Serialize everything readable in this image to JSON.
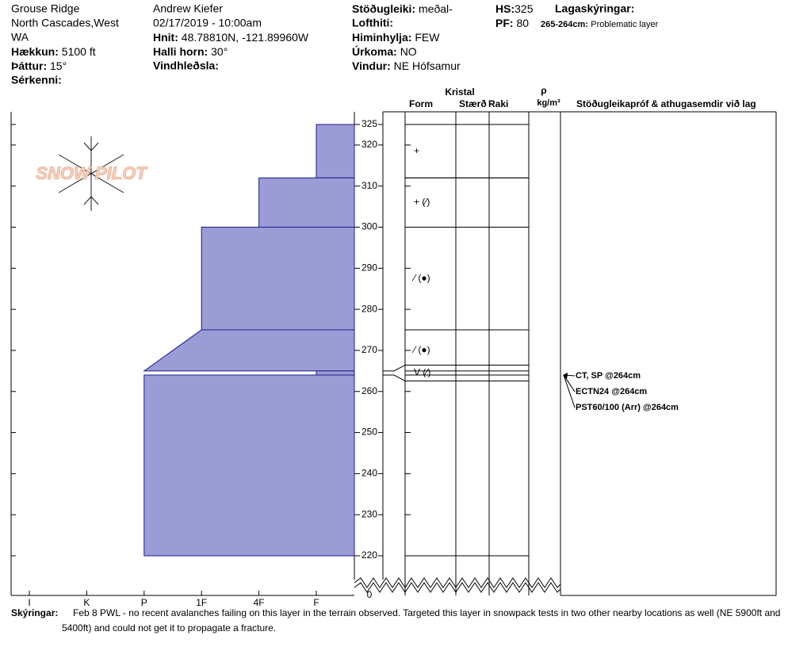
{
  "header": {
    "site": "Grouse Ridge",
    "region": [
      "North Cascades,West",
      "WA"
    ],
    "elevation": {
      "label": "Hækkun:",
      "value": "5100 ft"
    },
    "aspect": {
      "label": "Þáttur:",
      "value": "15°"
    },
    "features": {
      "label": "Sérkenni:"
    },
    "observer": "Andrew Kiefer",
    "datetime": "02/17/2019 - 10:00am",
    "coords": {
      "label": "Hnit:",
      "value": "48.78810N, -121.89960W"
    },
    "slope": {
      "label": "Halli horn:",
      "value": "30°"
    },
    "wind_loading": {
      "label": "Vindhleðsla:"
    },
    "stability": {
      "label": "Stöðugleiki:",
      "value": "meðal-"
    },
    "air_temp": {
      "label": "Lofthiti:"
    },
    "sky": {
      "label": "Himinhylja:",
      "value": "FEW"
    },
    "precip": {
      "label": "Úrkoma:",
      "value": "NO"
    },
    "wind": {
      "label": "Vindur:",
      "value": "NE Hófsamur"
    },
    "hs": {
      "label": "HS:",
      "value": "325"
    },
    "pf": {
      "label": "PF:",
      "value": "80"
    },
    "layer_notes": {
      "label": "Lagaskýringar:",
      "range": "265-264cm:",
      "text": "Problematic layer"
    }
  },
  "chart_data": {
    "type": "profile",
    "logo": "SNOW PILOT",
    "hardness_scale": [
      "I",
      "K",
      "P",
      "1F",
      "4F",
      "F"
    ],
    "ylim": [
      220,
      325
    ],
    "yticks": [
      325,
      320,
      310,
      300,
      290,
      280,
      270,
      260,
      250,
      240,
      230,
      220,
      0
    ],
    "axis_break": true,
    "color": "#9b9bd6",
    "columns": {
      "crystal": "Kristal",
      "form": "Form",
      "size": "Stærð",
      "moisture": "Raki",
      "density": "ρ",
      "density_unit": "kg/m³",
      "tests": "Stöðugleikapróf & athugasemdir við lag"
    },
    "layers": [
      {
        "top": 325,
        "bottom": 312,
        "hardness": [
          "F",
          "F"
        ],
        "grain": "+"
      },
      {
        "top": 312,
        "bottom": 300,
        "hardness": [
          "4F",
          "4F"
        ],
        "grain": "+ (⁄)"
      },
      {
        "top": 300,
        "bottom": 275,
        "hardness": [
          "1F",
          "1F"
        ],
        "grain": "⁄ (●)"
      },
      {
        "top": 275,
        "bottom": 265,
        "hardness": [
          "1F",
          "P"
        ],
        "grain": "⁄ (●)"
      },
      {
        "top": 265,
        "bottom": 264,
        "hardness": [
          "F",
          "F"
        ],
        "grain": "V (⁄)"
      },
      {
        "top": 264,
        "bottom": 220,
        "hardness": [
          "P",
          "P"
        ]
      }
    ],
    "tests": [
      {
        "label": "CT, SP @264cm",
        "depth": 264
      },
      {
        "label": "ECTN24 @264cm",
        "depth": 264
      },
      {
        "label": "PST60/100 (Arr) @264cm",
        "depth": 264
      }
    ]
  },
  "comments": {
    "label": "Skýringar:",
    "lines": [
      "Feb 8 PWL - no recent avalanches failing on this layer in the terrain observed. Targeted this layer in snowpack tests in two other nearby locations as well (NE 5900ft and",
      "5400ft) and could not get it to propagate a fracture."
    ]
  }
}
